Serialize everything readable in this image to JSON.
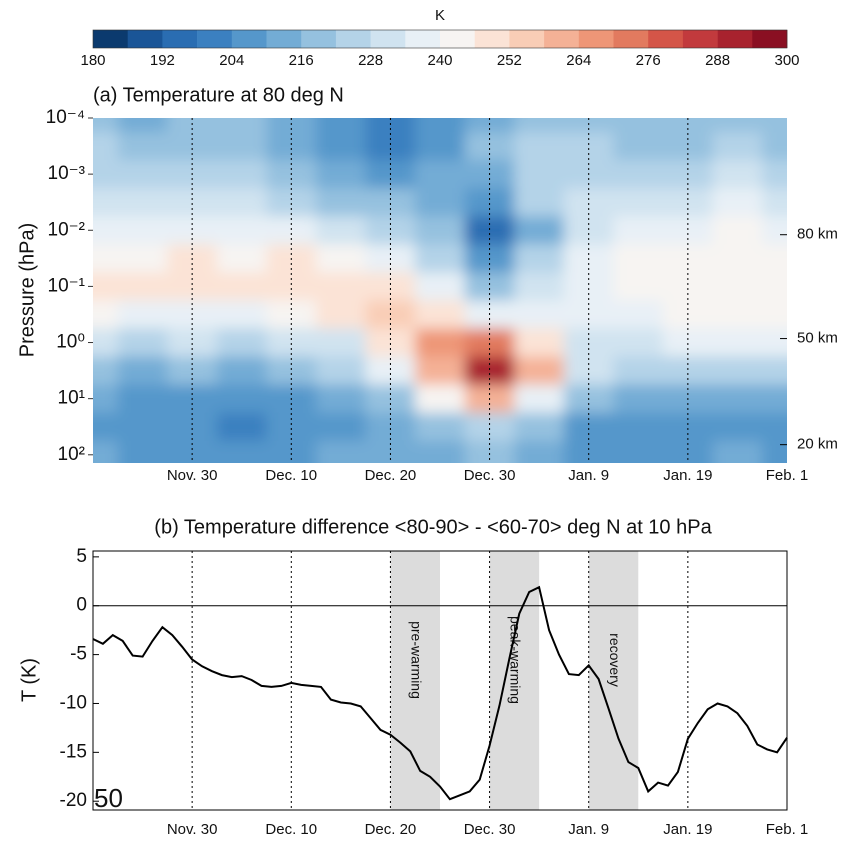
{
  "chart_data": [
    {
      "type": "heatmap",
      "title": "(a) Temperature at 80 deg N",
      "ylabel": "Pressure (hPa)",
      "colorbar": {
        "label": "K",
        "lim": [
          180,
          300
        ],
        "ticks": [
          180,
          192,
          204,
          216,
          228,
          240,
          252,
          264,
          276,
          288,
          300
        ],
        "colors": [
          "#0b3a6e",
          "#1a5597",
          "#2a6db2",
          "#3b80c0",
          "#5597cb",
          "#73acd5",
          "#95c1df",
          "#b4d3e8",
          "#d0e3f0",
          "#e8f0f6",
          "#f7f4f2",
          "#fbe3d6",
          "#f9cdb6",
          "#f4b196",
          "#ee9677",
          "#e27a5f",
          "#d45548",
          "#c23a3d",
          "#a8222e",
          "#8a0f22"
        ]
      },
      "x": [
        0,
        5,
        10,
        15,
        20,
        25,
        30,
        35,
        40,
        45,
        50,
        55,
        60,
        65,
        70
      ],
      "y": [
        0.0001,
        0.000316,
        0.001,
        0.00316,
        0.01,
        0.0316,
        0.1,
        0.316,
        1,
        3.16,
        10,
        31.6,
        100
      ],
      "z": [
        [
          220,
          214,
          218,
          216,
          214,
          208,
          200,
          204,
          214,
          220,
          220,
          216,
          218,
          220,
          218
        ],
        [
          222,
          216,
          220,
          218,
          214,
          206,
          198,
          204,
          216,
          222,
          222,
          218,
          220,
          222,
          220
        ],
        [
          226,
          222,
          226,
          224,
          218,
          212,
          206,
          210,
          214,
          224,
          226,
          224,
          226,
          228,
          226
        ],
        [
          230,
          228,
          232,
          230,
          226,
          220,
          216,
          214,
          206,
          222,
          230,
          230,
          232,
          234,
          232
        ],
        [
          236,
          234,
          238,
          236,
          234,
          230,
          226,
          220,
          196,
          214,
          232,
          236,
          238,
          240,
          238
        ],
        [
          244,
          242,
          246,
          244,
          246,
          242,
          236,
          226,
          204,
          222,
          236,
          240,
          242,
          244,
          244
        ],
        [
          248,
          246,
          248,
          246,
          248,
          250,
          246,
          236,
          220,
          230,
          238,
          242,
          244,
          244,
          244
        ],
        [
          240,
          238,
          238,
          236,
          240,
          246,
          256,
          250,
          236,
          238,
          236,
          238,
          240,
          240,
          240
        ],
        [
          228,
          226,
          228,
          226,
          228,
          232,
          248,
          264,
          270,
          250,
          232,
          232,
          234,
          236,
          236
        ],
        [
          216,
          214,
          216,
          214,
          216,
          222,
          234,
          258,
          290,
          262,
          228,
          222,
          224,
          226,
          226
        ],
        [
          210,
          206,
          206,
          204,
          208,
          212,
          220,
          240,
          262,
          236,
          216,
          212,
          214,
          214,
          212
        ],
        [
          208,
          204,
          204,
          202,
          204,
          208,
          212,
          218,
          226,
          218,
          208,
          206,
          206,
          208,
          206
        ],
        [
          210,
          206,
          208,
          206,
          208,
          210,
          212,
          214,
          216,
          212,
          208,
          206,
          206,
          210,
          208
        ]
      ],
      "xlim": [
        0,
        70
      ],
      "xticks": [
        {
          "value": 10,
          "label": "Nov. 30"
        },
        {
          "value": 20,
          "label": "Dec. 10"
        },
        {
          "value": 30,
          "label": "Dec. 20"
        },
        {
          "value": 40,
          "label": "Dec. 30"
        },
        {
          "value": 50,
          "label": "Jan. 9"
        },
        {
          "value": 60,
          "label": "Jan. 19"
        },
        {
          "value": 70,
          "label": "Feb. 1"
        }
      ],
      "ylim": [
        140,
        0.0001
      ],
      "log_y": true,
      "yticks": [
        {
          "value": 0.0001,
          "label": "10⁻⁴"
        },
        {
          "value": 0.001,
          "label": "10⁻³"
        },
        {
          "value": 0.01,
          "label": "10⁻²"
        },
        {
          "value": 0.1,
          "label": "10⁻¹"
        },
        {
          "value": 1,
          "label": "10⁰"
        },
        {
          "value": 10,
          "label": "10¹"
        },
        {
          "value": 100,
          "label": "10²"
        }
      ],
      "altitude_ticks": [
        {
          "value": 0.012,
          "label": "80 km"
        },
        {
          "value": 0.85,
          "label": "50 km"
        },
        {
          "value": 66,
          "label": "20 km"
        }
      ],
      "grid_x": true
    },
    {
      "type": "line",
      "title": "(b) Temperature difference <80-90> - <60-70> deg N at 10 hPa",
      "ylabel": "T (K)",
      "color": "#000000",
      "x": [
        0,
        1,
        2,
        3,
        4,
        5,
        6,
        7,
        8,
        9,
        10,
        11,
        12,
        13,
        14,
        15,
        16,
        17,
        18,
        19,
        20,
        21,
        22,
        23,
        24,
        25,
        26,
        27,
        28,
        29,
        30,
        31,
        32,
        33,
        34,
        35,
        36,
        37,
        38,
        39,
        40,
        41,
        42,
        43,
        44,
        45,
        46,
        47,
        48,
        49,
        50,
        51,
        52,
        53,
        54,
        55,
        56,
        57,
        58,
        59,
        60,
        61,
        62,
        63,
        64,
        65,
        66,
        67,
        68,
        69,
        70
      ],
      "values": [
        -3.4,
        -3.9,
        -3.0,
        -3.6,
        -5.1,
        -5.2,
        -3.6,
        -2.2,
        -3.0,
        -4.2,
        -5.5,
        -6.2,
        -6.7,
        -7.1,
        -7.3,
        -7.2,
        -7.6,
        -8.2,
        -8.3,
        -8.2,
        -7.9,
        -8.1,
        -8.2,
        -8.3,
        -9.6,
        -9.9,
        -10.0,
        -10.3,
        -11.5,
        -12.7,
        -13.2,
        -14.0,
        -14.9,
        -16.9,
        -17.5,
        -18.5,
        -19.8,
        -19.4,
        -19.0,
        -17.8,
        -14.3,
        -10.2,
        -5.4,
        -0.8,
        1.4,
        1.9,
        -2.5,
        -5.0,
        -7.0,
        -7.1,
        -6.1,
        -7.5,
        -10.5,
        -13.6,
        -16.0,
        -16.6,
        -19.0,
        -18.1,
        -18.4,
        -17.0,
        -13.6,
        -12.0,
        -10.6,
        -10.0,
        -10.3,
        -11.0,
        -12.3,
        -14.2,
        -14.7,
        -15.0,
        -13.5
      ],
      "xlim": [
        0,
        70
      ],
      "xticks": [
        {
          "value": 10,
          "label": "Nov. 30"
        },
        {
          "value": 20,
          "label": "Dec. 10"
        },
        {
          "value": 30,
          "label": "Dec. 20"
        },
        {
          "value": 40,
          "label": "Dec. 30"
        },
        {
          "value": 50,
          "label": "Jan. 9"
        },
        {
          "value": 60,
          "label": "Jan. 19"
        },
        {
          "value": 70,
          "label": "Feb. 1"
        }
      ],
      "ylim": [
        -20.9,
        5.6
      ],
      "yticks": [
        5,
        0,
        -5,
        -10,
        -15,
        -20
      ],
      "reference_line": 0,
      "grid_x": true,
      "bands": [
        {
          "start": 30,
          "end": 35,
          "label": "pre-warming"
        },
        {
          "start": 40,
          "end": 45,
          "label": "peak-warming"
        },
        {
          "start": 50,
          "end": 55,
          "label": "recovery"
        }
      ],
      "annotation": "50"
    }
  ]
}
